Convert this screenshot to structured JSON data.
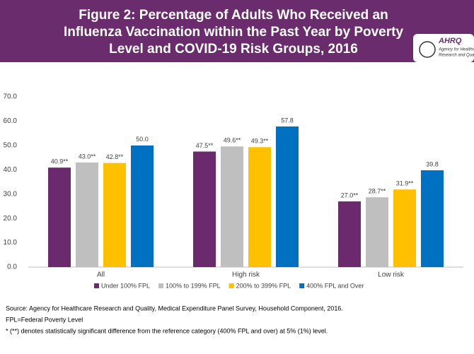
{
  "chart_data": {
    "type": "bar",
    "title_lines": [
      "Figure 2: Percentage of Adults Who Received an",
      "Influenza Vaccination within the Past Year by Poverty",
      "Level and COVID-19 Risk Groups, 2016"
    ],
    "logo": {
      "name": "AHRQ",
      "tagline": [
        "Agency for Healthcare",
        "Research and Quality"
      ]
    },
    "categories": [
      "All",
      "High risk",
      "Low risk"
    ],
    "series": [
      {
        "name": "Under 100% FPL",
        "color": "#6b2a6e",
        "values": [
          40.9,
          47.5,
          27.0
        ],
        "value_labels": [
          "40.9**",
          "47.5**",
          "27.0**"
        ]
      },
      {
        "name": "100% to 199% FPL",
        "color": "#bfbfbf",
        "values": [
          43.0,
          49.6,
          28.7
        ],
        "value_labels": [
          "43.0**",
          "49.6**",
          "28.7**"
        ]
      },
      {
        "name": "200% to 399% FPL",
        "color": "#ffc000",
        "values": [
          42.8,
          49.3,
          31.9
        ],
        "value_labels": [
          "42.8**",
          "49.3**",
          "31.9**"
        ]
      },
      {
        "name": "400% FPL and Over",
        "color": "#0070c0",
        "values": [
          50.0,
          57.8,
          39.8
        ],
        "value_labels": [
          "50.0",
          "57.8",
          "39.8"
        ]
      }
    ],
    "ylim": [
      0,
      70
    ],
    "yticks": [
      {
        "value": 0,
        "label": "0.0"
      },
      {
        "value": 10,
        "label": "10.0"
      },
      {
        "value": 20,
        "label": "20.0"
      },
      {
        "value": 30,
        "label": "30.0"
      },
      {
        "value": 40,
        "label": "40.0"
      },
      {
        "value": 50,
        "label": "50.0"
      },
      {
        "value": 60,
        "label": "60.0"
      },
      {
        "value": 70,
        "label": "70.0"
      }
    ],
    "grid": false,
    "notes": [
      "Source: Agency for Healthcare Research and Quality, Medical Expenditure Panel Survey, Household Component, 2016.",
      "FPL=Federal Poverty Level",
      "* (**) denotes statistically significant difference from the reference category (400% FPL and over) at 5% (1%) level."
    ]
  }
}
